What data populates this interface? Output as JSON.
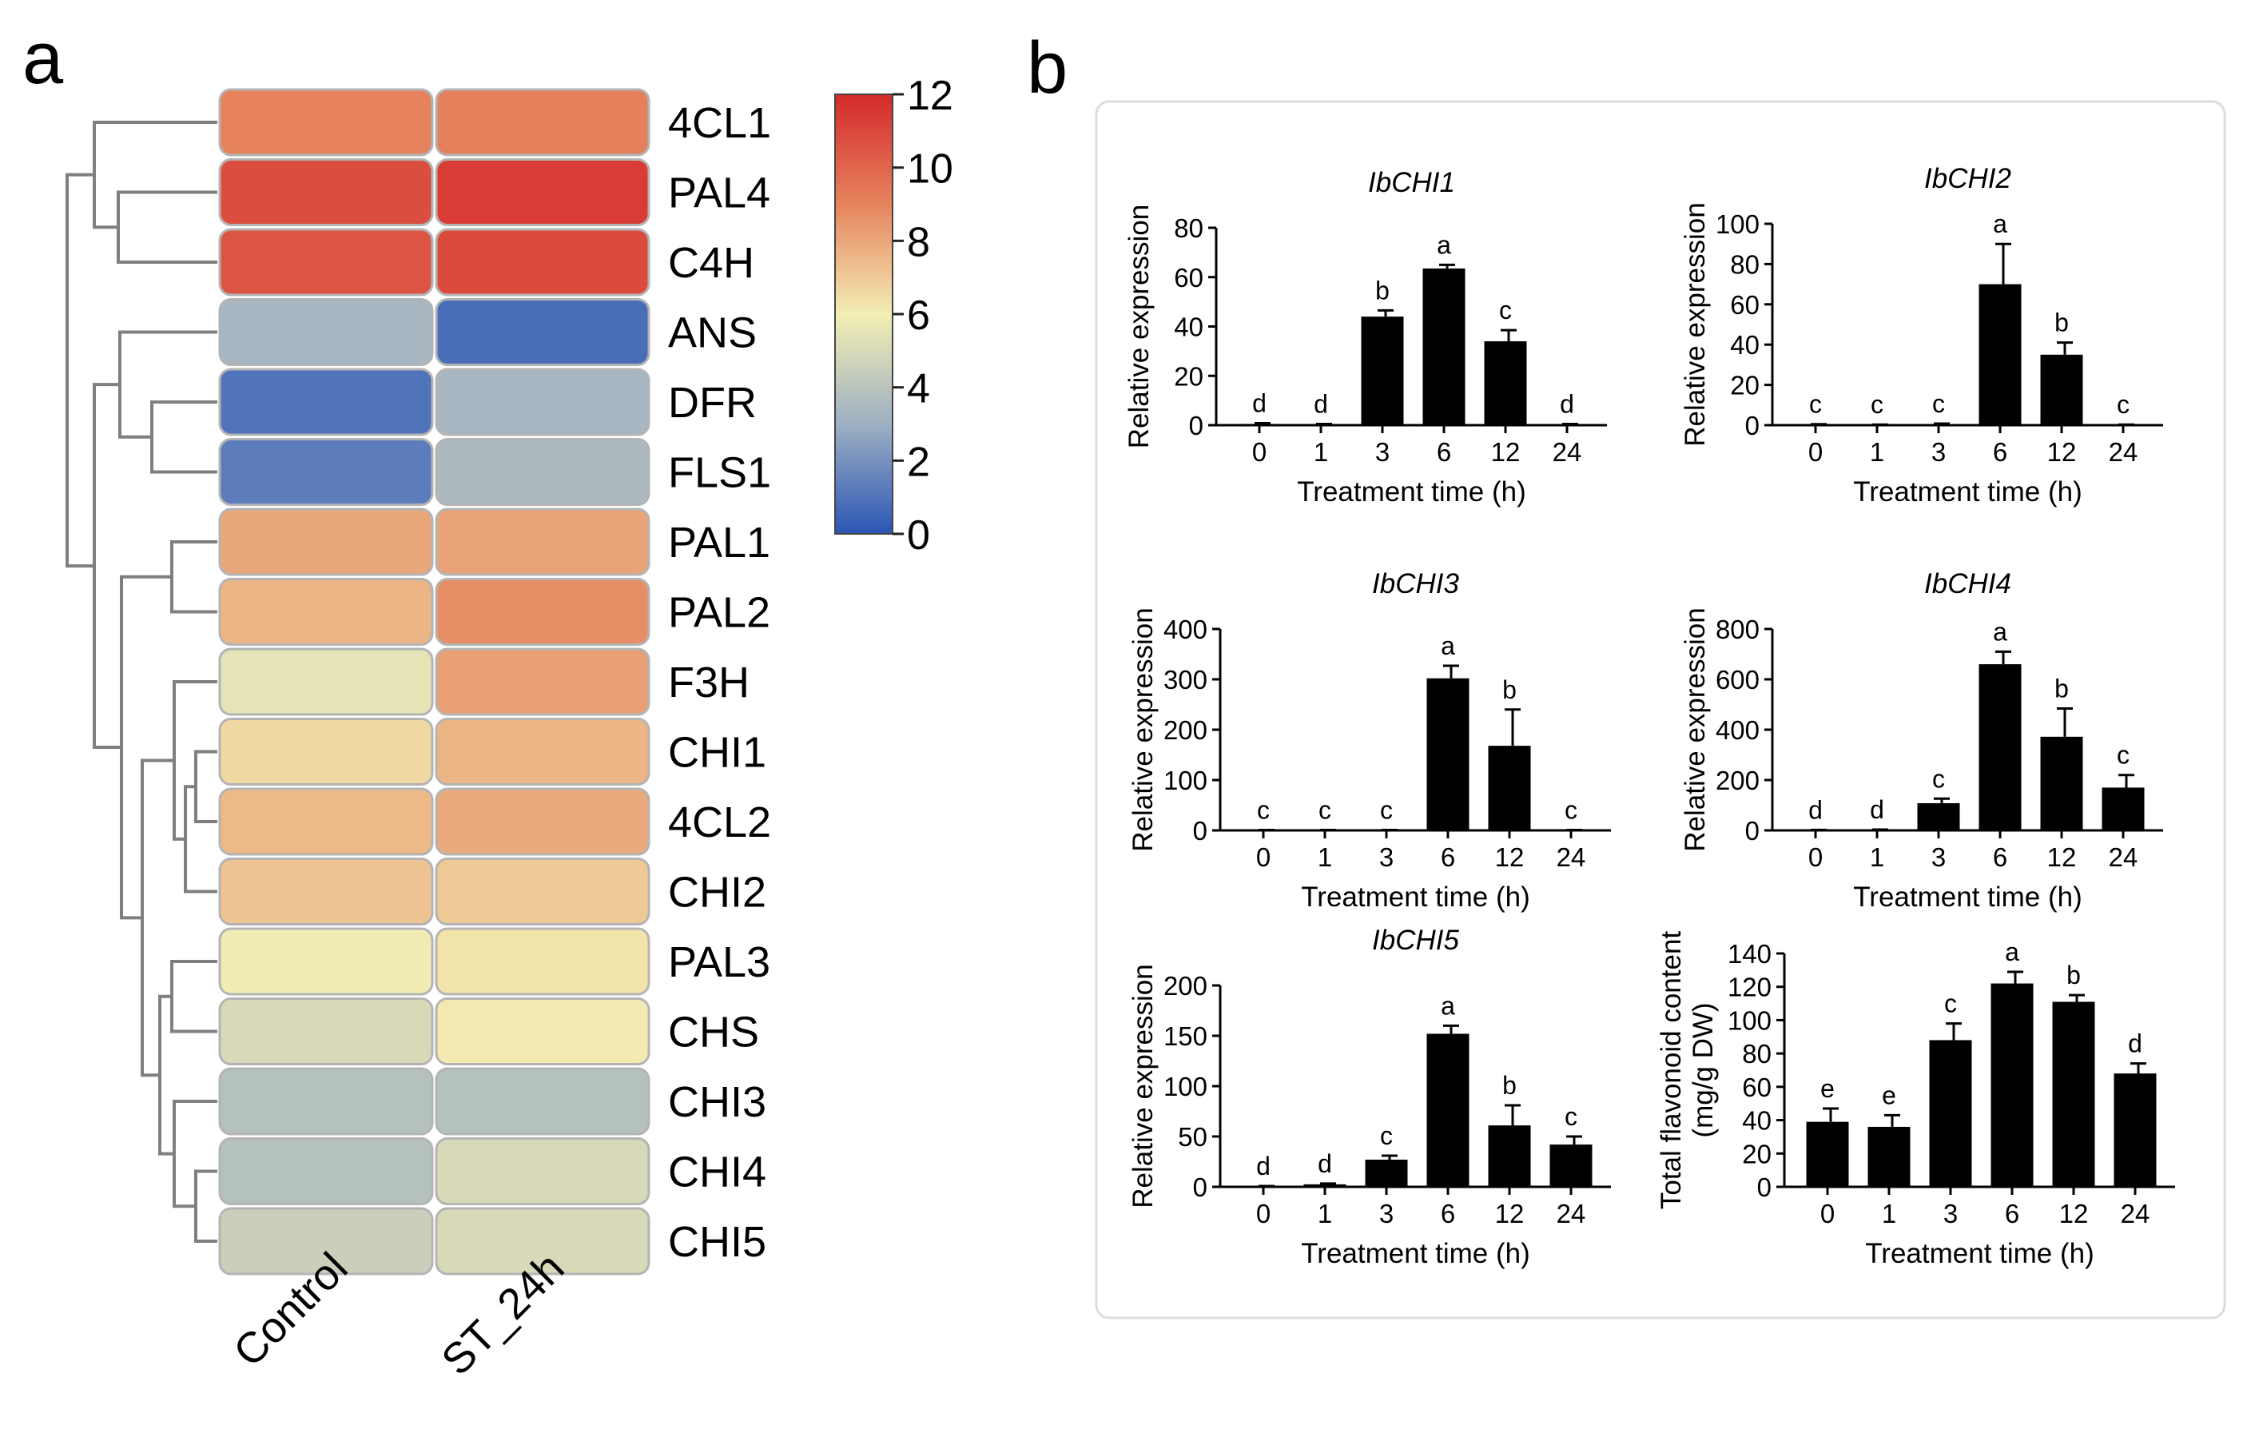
{
  "panel_a": {
    "letter": "a"
  },
  "panel_b": {
    "letter": "b"
  },
  "chart_data": [
    {
      "type": "heatmap",
      "title": "",
      "columns": [
        "Control",
        "ST_24h"
      ],
      "rows": [
        "4CL1",
        "PAL4",
        "C4H",
        "ANS",
        "DFR",
        "FLS1",
        "PAL1",
        "PAL2",
        "F3H",
        "CHI1",
        "4CL2",
        "CHI2",
        "PAL3",
        "CHS",
        "CHI3",
        "CHI4",
        "CHI5"
      ],
      "values": [
        [
          9.0,
          9.1
        ],
        [
          10.8,
          11.4
        ],
        [
          10.6,
          10.9
        ],
        [
          3.3,
          0.8
        ],
        [
          1.0,
          3.3
        ],
        [
          1.3,
          3.5
        ],
        [
          8.0,
          8.1
        ],
        [
          7.6,
          8.7
        ],
        [
          5.5,
          8.2
        ],
        [
          6.6,
          7.6
        ],
        [
          7.5,
          7.9
        ],
        [
          7.2,
          7.0
        ],
        [
          5.9,
          6.3
        ],
        [
          5.0,
          6.1
        ],
        [
          3.8,
          3.8
        ],
        [
          3.8,
          5.0
        ],
        [
          4.5,
          5.0
        ]
      ],
      "colorbar": {
        "min": 0,
        "max": 12,
        "ticks": [
          "12",
          "10",
          "8",
          "6",
          "4",
          "2",
          "0"
        ],
        "colors": [
          "#2b55b5",
          "#9eb0c2",
          "#f3eeb4",
          "#e6835e",
          "#d42a2a"
        ]
      }
    },
    {
      "type": "bar",
      "title": "IbCHI1",
      "xlabel": "Treatment time (h)",
      "ylabel": "Relative expression",
      "categories": [
        "0",
        "1",
        "3",
        "6",
        "12",
        "24"
      ],
      "values": [
        0.5,
        0.3,
        44,
        63.5,
        34,
        0.3
      ],
      "errors": [
        0.3,
        0.2,
        2.5,
        1.5,
        4.5,
        0.2
      ],
      "labels": [
        "d",
        "d",
        "b",
        "a",
        "c",
        "d"
      ],
      "ylim": [
        0,
        80
      ],
      "yticks": [
        "0",
        "20",
        "40",
        "60",
        "80"
      ]
    },
    {
      "type": "bar",
      "title": "IbCHI2",
      "xlabel": "Treatment time (h)",
      "ylabel": "Relative expression",
      "categories": [
        "0",
        "1",
        "3",
        "6",
        "12",
        "24"
      ],
      "values": [
        0.3,
        0.2,
        0.5,
        70,
        35,
        0.2
      ],
      "errors": [
        0.2,
        0.1,
        0.3,
        20,
        6,
        0.1
      ],
      "labels": [
        "c",
        "c",
        "c",
        "a",
        "b",
        "c"
      ],
      "ylim": [
        0,
        100
      ],
      "yticks": [
        "0",
        "20",
        "40",
        "60",
        "80",
        "100"
      ]
    },
    {
      "type": "bar",
      "title": "IbCHI3",
      "xlabel": "Treatment time (h)",
      "ylabel": "Relative expression",
      "categories": [
        "0",
        "1",
        "3",
        "6",
        "12",
        "24"
      ],
      "values": [
        0.5,
        0.5,
        0.5,
        302,
        168,
        0.5
      ],
      "errors": [
        0.3,
        0.3,
        0.3,
        25,
        72,
        0.3
      ],
      "labels": [
        "c",
        "c",
        "c",
        "a",
        "b",
        "c"
      ],
      "ylim": [
        0,
        400
      ],
      "yticks": [
        "0",
        "100",
        "200",
        "300",
        "400"
      ]
    },
    {
      "type": "bar",
      "title": "IbCHI4",
      "xlabel": "Treatment time (h)",
      "ylabel": "Relative expression",
      "categories": [
        "0",
        "1",
        "3",
        "6",
        "12",
        "24"
      ],
      "values": [
        1,
        2,
        108,
        660,
        372,
        170
      ],
      "errors": [
        1,
        1,
        18,
        50,
        112,
        50
      ],
      "labels": [
        "d",
        "d",
        "c",
        "a",
        "b",
        "c"
      ],
      "ylim": [
        0,
        800
      ],
      "yticks": [
        "0",
        "200",
        "400",
        "600",
        "800"
      ]
    },
    {
      "type": "bar",
      "title": "IbCHI5",
      "xlabel": "Treatment time (h)",
      "ylabel": "Relative expression",
      "categories": [
        "0",
        "1",
        "3",
        "6",
        "12",
        "24"
      ],
      "values": [
        0.5,
        2.5,
        27,
        152,
        61,
        42
      ],
      "errors": [
        0.3,
        0.8,
        4,
        8,
        20,
        8
      ],
      "labels": [
        "d",
        "d",
        "c",
        "a",
        "b",
        "c"
      ],
      "ylim": [
        0,
        200
      ],
      "yticks": [
        "0",
        "50",
        "100",
        "150",
        "200"
      ]
    },
    {
      "type": "bar",
      "title": "",
      "xlabel": "Treatment time (h)",
      "ylabel": "Total flavonoid content",
      "ylabel2": "(mg/g DW)",
      "categories": [
        "0",
        "1",
        "3",
        "6",
        "12",
        "24"
      ],
      "values": [
        39,
        36,
        88,
        122,
        111,
        68
      ],
      "errors": [
        8,
        7,
        10,
        7,
        4,
        6
      ],
      "labels": [
        "e",
        "e",
        "c",
        "a",
        "b",
        "d"
      ],
      "ylim": [
        0,
        140
      ],
      "yticks": [
        "0",
        "20",
        "40",
        "60",
        "80",
        "100",
        "120",
        "140"
      ]
    }
  ]
}
